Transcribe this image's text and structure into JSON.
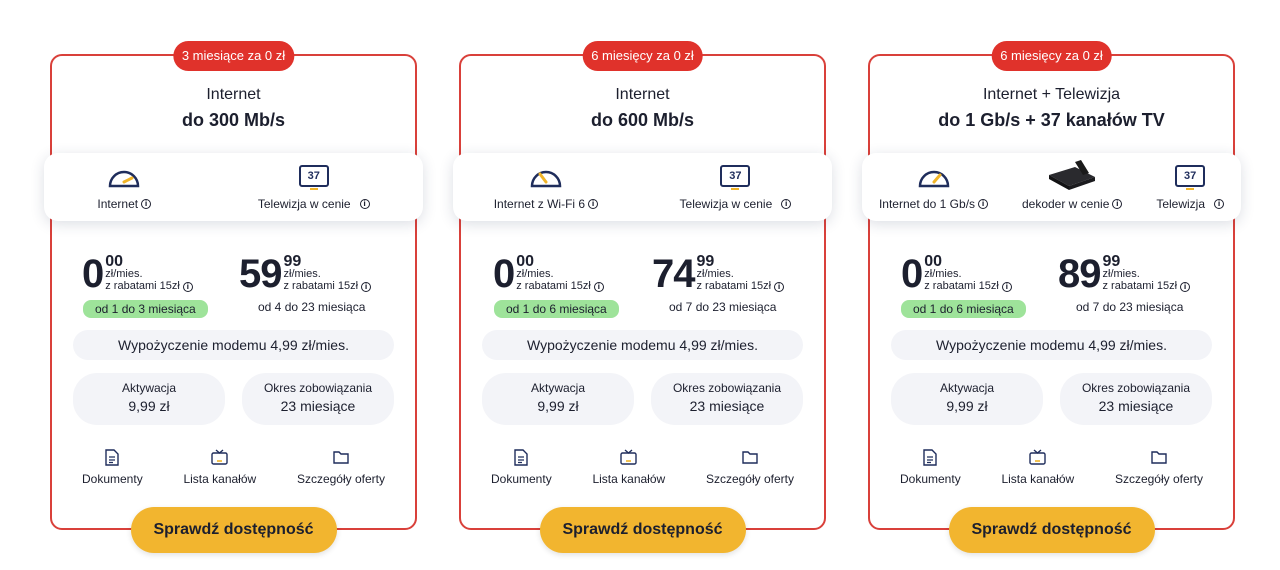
{
  "cards": [
    {
      "promo": "3 miesiące za 0 zł",
      "category": "Internet",
      "name": "do 300 Mb/s",
      "features": [
        {
          "label": "Internet",
          "icon": "speedometer-icon"
        },
        {
          "label": "Telewizja w cenie",
          "icon": "tv-channels-icon",
          "badge": "37"
        }
      ],
      "price1": {
        "big": "0",
        "cents": "00",
        "unit": "zł/mies.",
        "discount": "z rabatami 15zł",
        "period": "od 1 do 3 miesiąca"
      },
      "price2": {
        "big": "59",
        "cents": "99",
        "unit": "zł/mies.",
        "discount": "z rabatami 15zł",
        "period": "od 4 do 23 miesiąca"
      },
      "modem": "Wypożyczenie modemu 4,99 zł/mies.",
      "activation": {
        "title": "Aktywacja",
        "value": "9,99 zł"
      },
      "commitment": {
        "title": "Okres zobowiązania",
        "value": "23 miesiące"
      },
      "links": [
        "Dokumenty",
        "Lista kanałów",
        "Szczegóły oferty"
      ],
      "cta": "Sprawdź dostępność"
    },
    {
      "promo": "6 miesięcy za 0 zł",
      "category": "Internet",
      "name": "do 600 Mb/s",
      "features": [
        {
          "label": "Internet z Wi-Fi 6",
          "icon": "speedometer-icon"
        },
        {
          "label": "Telewizja w cenie",
          "icon": "tv-channels-icon",
          "badge": "37"
        }
      ],
      "price1": {
        "big": "0",
        "cents": "00",
        "unit": "zł/mies.",
        "discount": "z rabatami 15zł",
        "period": "od 1 do 6 miesiąca"
      },
      "price2": {
        "big": "74",
        "cents": "99",
        "unit": "zł/mies.",
        "discount": "z rabatami 15zł",
        "period": "od 7 do 23 miesiąca"
      },
      "modem": "Wypożyczenie modemu 4,99 zł/mies.",
      "activation": {
        "title": "Aktywacja",
        "value": "9,99 zł"
      },
      "commitment": {
        "title": "Okres zobowiązania",
        "value": "23 miesiące"
      },
      "links": [
        "Dokumenty",
        "Lista kanałów",
        "Szczegóły oferty"
      ],
      "cta": "Sprawdź dostępność"
    },
    {
      "promo": "6 miesięcy za 0 zł",
      "category": "Internet + Telewizja",
      "name": "do 1 Gb/s + 37 kanałów TV",
      "features": [
        {
          "label": "Internet do 1 Gb/s",
          "icon": "speedometer-icon"
        },
        {
          "label": "dekoder w cenie",
          "icon": "decoder-icon"
        },
        {
          "label": "Telewizja",
          "icon": "tv-channels-icon",
          "badge": "37"
        }
      ],
      "price1": {
        "big": "0",
        "cents": "00",
        "unit": "zł/mies.",
        "discount": "z rabatami 15zł",
        "period": "od 1 do 6 miesiąca"
      },
      "price2": {
        "big": "89",
        "cents": "99",
        "unit": "zł/mies.",
        "discount": "z rabatami 15zł",
        "period": "od 7 do 23 miesiąca"
      },
      "modem": "Wypożyczenie modemu 4,99 zł/mies.",
      "activation": {
        "title": "Aktywacja",
        "value": "9,99 zł"
      },
      "commitment": {
        "title": "Okres zobowiązania",
        "value": "23 miesiące"
      },
      "links": [
        "Dokumenty",
        "Lista kanałów",
        "Szczegóły oferty"
      ],
      "cta": "Sprawdź dostępność"
    }
  ],
  "info_glyph": "i",
  "colors": {
    "border": "#d9403a",
    "promo": "#e0322b",
    "cta": "#f2b52f",
    "green_badge": "#9ee39a",
    "navy": "#1f2d5c"
  }
}
